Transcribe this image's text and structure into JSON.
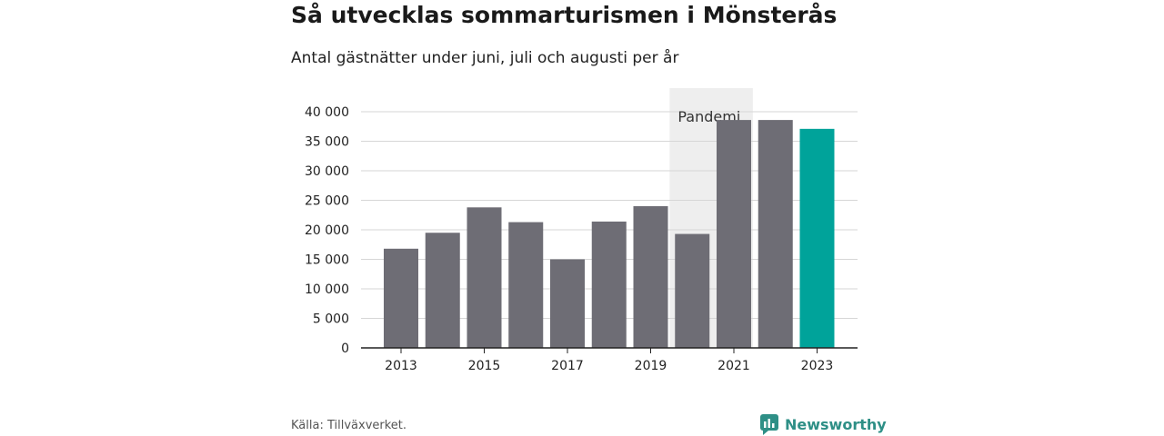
{
  "header": {
    "title": "Så utvecklas sommarturismen i Mönsterås",
    "subtitle": "Antal gästnätter under juni, juli och augusti per år"
  },
  "footer": {
    "source": "Källa: Tillväxverket.",
    "brand": "Newsworthy",
    "brand_icon": "newsworthy-logo-icon"
  },
  "colors": {
    "bar": "#6e6d75",
    "highlight": "#00a39a",
    "pandemic_band": "#eeeeee",
    "brand": "#2e8f86"
  },
  "chart_data": {
    "type": "bar",
    "categories": [
      "2013",
      "2014",
      "2015",
      "2016",
      "2017",
      "2018",
      "2019",
      "2020",
      "2021",
      "2022",
      "2023"
    ],
    "values": [
      16800,
      19500,
      23800,
      21300,
      15000,
      21400,
      24000,
      19300,
      38600,
      38600,
      37100
    ],
    "highlight_index": 10,
    "xtick_labels": [
      "2013",
      "2015",
      "2017",
      "2019",
      "2021",
      "2023"
    ],
    "ytick_values": [
      0,
      5000,
      10000,
      15000,
      20000,
      25000,
      30000,
      35000,
      40000
    ],
    "ytick_labels": [
      "0",
      "5 000",
      "10 000",
      "15 000",
      "20 000",
      "25 000",
      "30 000",
      "35 000",
      "40 000"
    ],
    "ylim": [
      0,
      44000
    ],
    "grid": true,
    "annotation": {
      "label": "Pandemi",
      "from_category": "2020",
      "to_category": "2021"
    }
  }
}
